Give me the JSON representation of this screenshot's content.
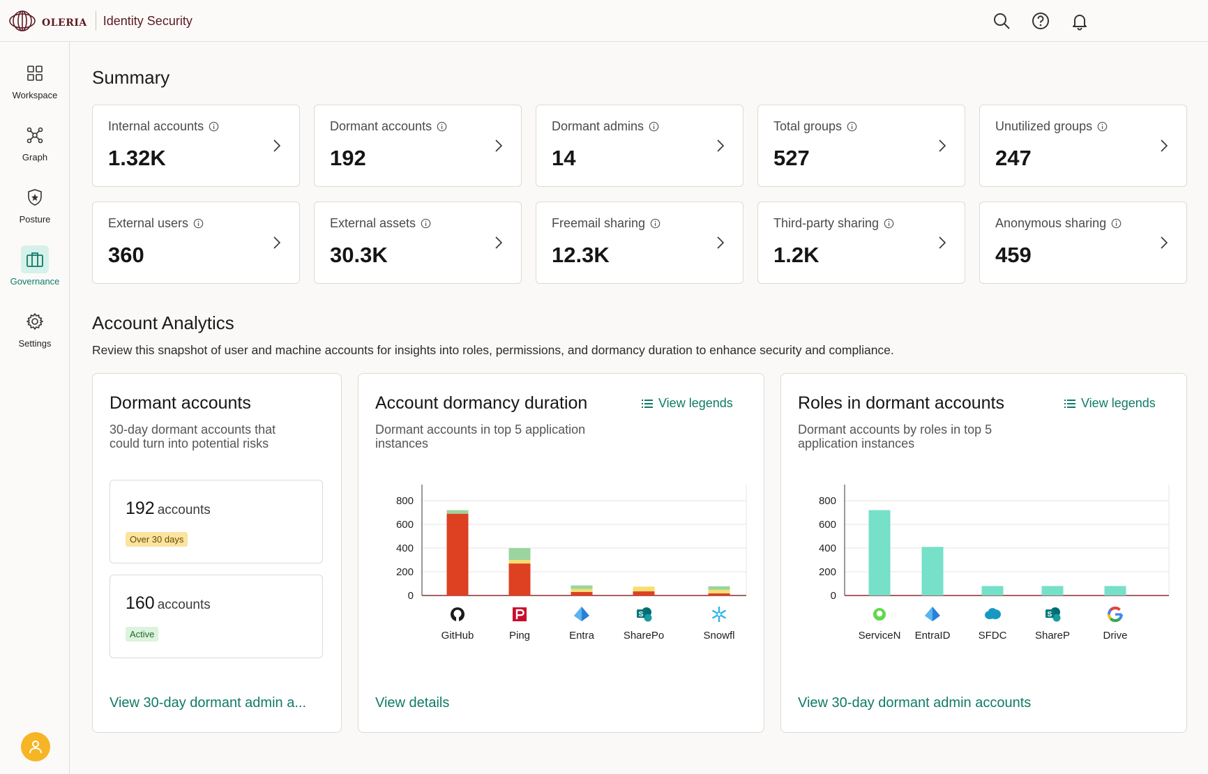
{
  "header": {
    "brand": "oleria",
    "product": "Identity Security",
    "icons": [
      "search-icon",
      "help-icon",
      "bell-icon"
    ]
  },
  "sidebar": {
    "items": [
      {
        "label": "Workspace",
        "icon": "grid-icon",
        "active": false
      },
      {
        "label": "Graph",
        "icon": "graph-icon",
        "active": false
      },
      {
        "label": "Posture",
        "icon": "shield-star-icon",
        "active": false
      },
      {
        "label": "Governance",
        "icon": "briefcase-icon",
        "active": true
      },
      {
        "label": "Settings",
        "icon": "gear-icon",
        "active": false
      }
    ]
  },
  "summary": {
    "title": "Summary",
    "cards": [
      {
        "label": "Internal accounts",
        "value": "1.32K"
      },
      {
        "label": "Dormant accounts",
        "value": "192"
      },
      {
        "label": "Dormant admins",
        "value": "14"
      },
      {
        "label": "Total groups",
        "value": "527"
      },
      {
        "label": "Unutilized groups",
        "value": "247"
      },
      {
        "label": "External users",
        "value": "360"
      },
      {
        "label": "External assets",
        "value": "30.3K"
      },
      {
        "label": "Freemail sharing",
        "value": "12.3K"
      },
      {
        "label": "Third-party sharing",
        "value": "1.2K"
      },
      {
        "label": "Anonymous sharing",
        "value": "459"
      }
    ]
  },
  "analytics": {
    "title": "Account Analytics",
    "description": "Review this snapshot of user and machine accounts for insights into roles, permissions, and dormancy duration to enhance security and compliance.",
    "dormant": {
      "title": "Dormant accounts",
      "subtitle_line1": "30-day dormant accounts that",
      "subtitle_line2": "could turn into potential risks",
      "boxes": [
        {
          "count": "192",
          "unit": "accounts",
          "badge": "Over 30 days"
        },
        {
          "count": "160",
          "unit": "accounts",
          "badge": "Active"
        }
      ],
      "link": "View 30-day dormant admin a..."
    },
    "duration": {
      "title": "Account dormancy duration",
      "legend_link": "View legends",
      "subtitle_line1": "Dormant accounts in top 5 application",
      "subtitle_line2": "instances",
      "link": "View details"
    },
    "roles": {
      "title": "Roles in dormant accounts",
      "legend_link": "View legends",
      "subtitle_line1": "Dormant accounts by roles in top 5",
      "subtitle_line2": "application instances",
      "link": "View 30-day dormant admin accounts"
    }
  },
  "colors": {
    "accent": "#0f7a67",
    "red": "#dd4122",
    "yellow": "#f7de72",
    "green": "#9bd49e",
    "teal": "#76e0c8",
    "avatar": "#f6b524"
  },
  "chart_data": [
    {
      "type": "bar",
      "stacked": true,
      "title": "Account dormancy duration",
      "categories": [
        "GitHub",
        "Ping",
        "Entra",
        "SharePo",
        "Snowfl"
      ],
      "category_icons": [
        "github-icon",
        "ping-icon",
        "entra-icon",
        "sharepoint-icon",
        "snowflake-icon"
      ],
      "series": [
        {
          "name": "segment-1",
          "color": "#dd4122",
          "values": [
            690,
            270,
            30,
            35,
            18
          ]
        },
        {
          "name": "segment-2",
          "color": "#f7de72",
          "values": [
            0,
            30,
            25,
            40,
            30
          ]
        },
        {
          "name": "segment-3",
          "color": "#9bd49e",
          "values": [
            30,
            100,
            30,
            0,
            30
          ]
        }
      ],
      "yticks": [
        0,
        200,
        400,
        600,
        800
      ],
      "ylim": [
        0,
        900
      ]
    },
    {
      "type": "bar",
      "title": "Roles in dormant accounts",
      "categories": [
        "ServiceN",
        "EntraID",
        "SFDC",
        "ShareP",
        "Drive"
      ],
      "category_icons": [
        "servicenow-icon",
        "entra-icon",
        "salesforce-icon",
        "sharepoint-icon",
        "google-icon"
      ],
      "values": [
        720,
        410,
        80,
        80,
        80
      ],
      "color": "#76e0c8",
      "yticks": [
        0,
        200,
        400,
        600,
        800
      ],
      "ylim": [
        0,
        900
      ]
    }
  ]
}
